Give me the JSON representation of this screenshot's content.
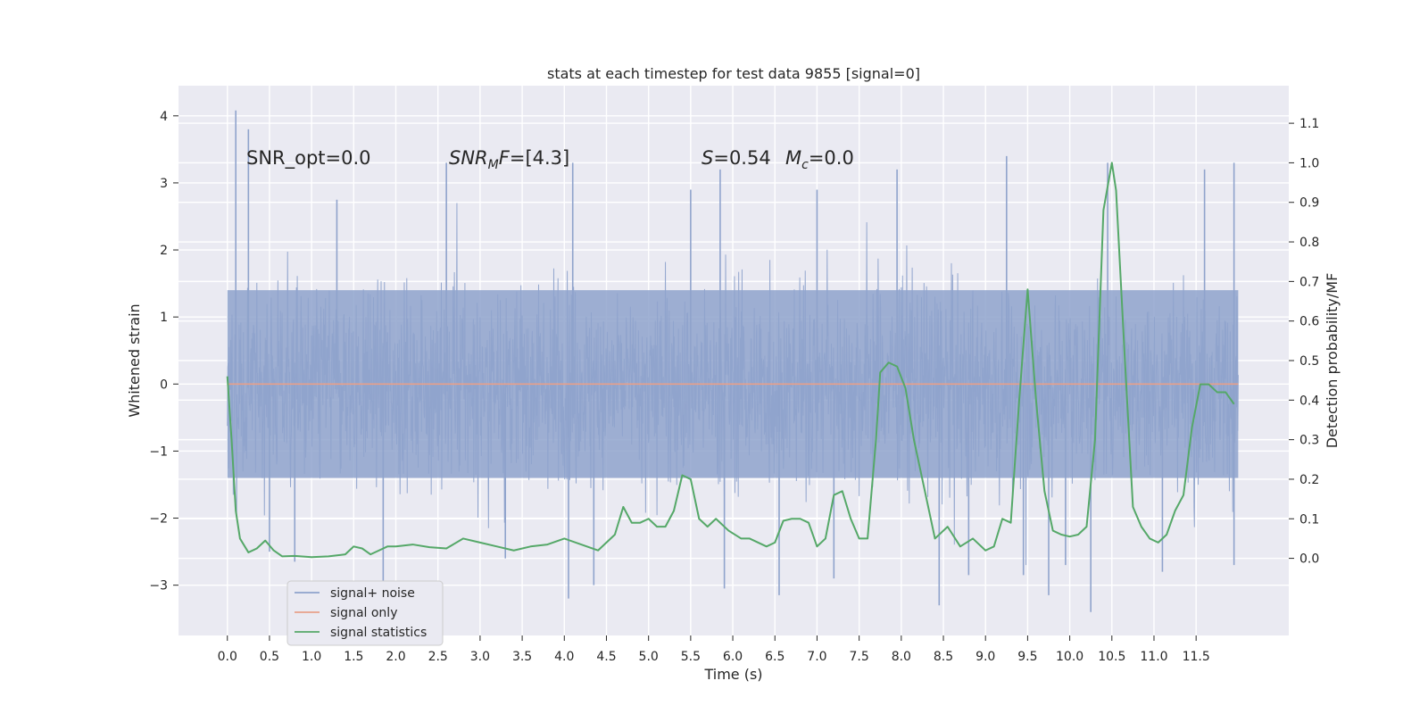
{
  "chart_data": {
    "type": "line",
    "title": "stats at each timestep for test data 9855 [signal=0]",
    "xlabel": "Time (s)",
    "ylabel_left": "Whitened strain",
    "ylabel_right": "Detection probability/MF",
    "xlim": [
      -0.58,
      12.6
    ],
    "ylim_left": [
      -3.75,
      4.45
    ],
    "ylim_right": [
      -0.195,
      1.195
    ],
    "x_ticks": [
      "0.0",
      "0.5",
      "1.0",
      "1.5",
      "2.0",
      "2.5",
      "3.0",
      "3.5",
      "4.0",
      "4.5",
      "5.0",
      "5.5",
      "6.0",
      "6.5",
      "7.0",
      "7.5",
      "8.0",
      "8.5",
      "9.0",
      "9.5",
      "10.0",
      "10.5",
      "11.0",
      "11.5"
    ],
    "y_ticks_left": [
      "4",
      "3",
      "2",
      "1",
      "0",
      "−1",
      "−2",
      "−3"
    ],
    "y_ticks_right": [
      "1.1",
      "1.0",
      "0.9",
      "0.8",
      "0.7",
      "0.6",
      "0.5",
      "0.4",
      "0.3",
      "0.2",
      "0.1",
      "0.0"
    ],
    "grid": true,
    "legend_position": "lower-left",
    "annotations": {
      "snr_opt": "SNR_opt=0.0",
      "snr_mf": "[4.3]",
      "s_value": "=0.54",
      "mc_value": "=0.0"
    },
    "series": [
      {
        "name": "signal+ noise",
        "color": "#8fa3cc",
        "axis": "left",
        "kind": "noise",
        "x_range": [
          0.0,
          12.0
        ],
        "typical_band": [
          -1.4,
          1.4
        ],
        "peaks": [
          [
            0.1,
            4.08
          ],
          [
            0.25,
            3.8
          ],
          [
            2.6,
            3.3
          ],
          [
            4.1,
            3.3
          ],
          [
            5.85,
            3.2
          ],
          [
            7.95,
            3.2
          ],
          [
            9.25,
            3.4
          ],
          [
            10.45,
            3.3
          ],
          [
            11.6,
            3.2
          ],
          [
            11.95,
            3.3
          ],
          [
            5.5,
            2.9
          ],
          [
            7.0,
            2.9
          ],
          [
            1.3,
            2.75
          ],
          [
            4.05,
            -3.2
          ],
          [
            10.25,
            -3.4
          ],
          [
            8.45,
            -3.3
          ],
          [
            9.75,
            -3.15
          ],
          [
            6.55,
            -3.15
          ],
          [
            0.5,
            -2.5
          ],
          [
            0.8,
            -2.65
          ],
          [
            1.85,
            -2.95
          ],
          [
            3.3,
            -2.6
          ],
          [
            4.35,
            -3.0
          ],
          [
            5.9,
            -3.05
          ],
          [
            7.2,
            -2.9
          ],
          [
            8.8,
            -2.85
          ],
          [
            9.45,
            -2.85
          ],
          [
            9.95,
            -2.7
          ],
          [
            11.1,
            -2.8
          ],
          [
            11.95,
            -2.7
          ]
        ]
      },
      {
        "name": "signal only",
        "color": "#e8a08a",
        "axis": "left",
        "x": [
          0.0,
          12.0
        ],
        "y": [
          0.0,
          0.0
        ]
      },
      {
        "name": "signal statistics",
        "color": "#55a868",
        "axis": "right",
        "x": [
          0.0,
          0.05,
          0.1,
          0.15,
          0.25,
          0.35,
          0.45,
          0.55,
          0.65,
          0.8,
          1.0,
          1.2,
          1.4,
          1.5,
          1.6,
          1.7,
          1.8,
          1.9,
          2.0,
          2.2,
          2.4,
          2.6,
          2.8,
          3.0,
          3.2,
          3.4,
          3.6,
          3.8,
          4.0,
          4.2,
          4.4,
          4.6,
          4.7,
          4.8,
          4.9,
          5.0,
          5.1,
          5.2,
          5.3,
          5.4,
          5.5,
          5.6,
          5.7,
          5.8,
          5.95,
          6.1,
          6.2,
          6.4,
          6.5,
          6.6,
          6.7,
          6.8,
          6.9,
          7.0,
          7.1,
          7.2,
          7.3,
          7.4,
          7.5,
          7.6,
          7.7,
          7.75,
          7.85,
          7.95,
          8.05,
          8.15,
          8.25,
          8.4,
          8.55,
          8.7,
          8.85,
          9.0,
          9.1,
          9.2,
          9.3,
          9.4,
          9.5,
          9.6,
          9.7,
          9.8,
          9.9,
          10.0,
          10.1,
          10.2,
          10.3,
          10.4,
          10.5,
          10.55,
          10.65,
          10.75,
          10.85,
          10.95,
          11.05,
          11.15,
          11.25,
          11.35,
          11.45,
          11.55,
          11.65,
          11.75,
          11.85,
          11.95
        ],
        "y": [
          0.46,
          0.3,
          0.12,
          0.05,
          0.015,
          0.025,
          0.045,
          0.02,
          0.005,
          0.006,
          0.003,
          0.005,
          0.01,
          0.03,
          0.025,
          0.01,
          0.02,
          0.03,
          0.03,
          0.035,
          0.028,
          0.025,
          0.05,
          0.04,
          0.03,
          0.02,
          0.03,
          0.035,
          0.05,
          0.035,
          0.02,
          0.06,
          0.13,
          0.09,
          0.09,
          0.1,
          0.08,
          0.08,
          0.12,
          0.21,
          0.2,
          0.1,
          0.08,
          0.1,
          0.07,
          0.05,
          0.05,
          0.03,
          0.04,
          0.095,
          0.1,
          0.1,
          0.09,
          0.03,
          0.05,
          0.16,
          0.17,
          0.1,
          0.05,
          0.05,
          0.3,
          0.47,
          0.495,
          0.485,
          0.43,
          0.3,
          0.2,
          0.05,
          0.08,
          0.03,
          0.05,
          0.02,
          0.03,
          0.1,
          0.09,
          0.4,
          0.68,
          0.4,
          0.17,
          0.07,
          0.06,
          0.055,
          0.06,
          0.08,
          0.3,
          0.88,
          1.0,
          0.93,
          0.52,
          0.13,
          0.08,
          0.05,
          0.04,
          0.06,
          0.12,
          0.16,
          0.33,
          0.44,
          0.44,
          0.42,
          0.42,
          0.39
        ]
      }
    ]
  }
}
